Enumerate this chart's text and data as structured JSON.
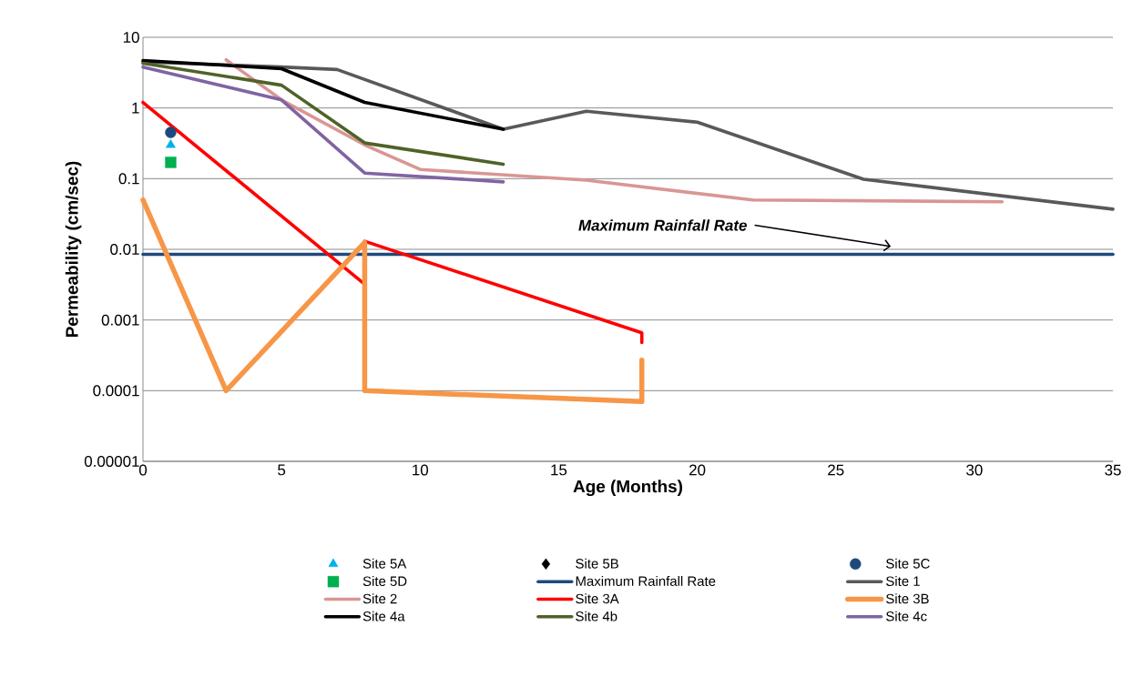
{
  "chart_data": {
    "type": "line",
    "xlabel": "Age (Months)",
    "ylabel": "Permeability (cm/sec)",
    "log": "y",
    "grid": "y",
    "legend": "bottom",
    "xlim": [
      0,
      35
    ],
    "xticks": [
      0,
      5,
      10,
      15,
      20,
      25,
      30,
      35
    ],
    "ylim": [
      1e-05,
      10
    ],
    "yticks": [
      {
        "value": 1e-05,
        "label": "0.00001"
      },
      {
        "value": 0.0001,
        "label": "0.0001"
      },
      {
        "value": 0.001,
        "label": "0.001"
      },
      {
        "value": 0.01,
        "label": "0.01"
      },
      {
        "value": 0.1,
        "label": "0.1"
      },
      {
        "value": 1,
        "label": "1"
      },
      {
        "value": 10,
        "label": "10"
      }
    ],
    "annotations": [
      "Maximum Rainfall Rate"
    ],
    "series": [
      {
        "name": "Site 5A",
        "type": "scatter",
        "marker": "triangle",
        "color": "#00b0f0",
        "x": [
          1
        ],
        "values": [
          0.3
        ]
      },
      {
        "name": "Site 5B",
        "type": "scatter",
        "marker": "diamond",
        "color": "#000000"
      },
      {
        "name": "Site 5C",
        "type": "scatter",
        "marker": "circle",
        "color": "#1f497d",
        "x": [
          1
        ],
        "values": [
          0.45
        ]
      },
      {
        "name": "Site 5D",
        "type": "scatter",
        "marker": "square",
        "color": "#00b050",
        "x": [
          1
        ],
        "values": [
          0.17
        ]
      },
      {
        "name": "Maximum Rainfall Rate",
        "color": "#1f497d",
        "x": [
          0,
          35
        ],
        "values": [
          0.0085,
          0.0085
        ]
      },
      {
        "name": "Site 1",
        "color": "#595959",
        "x": [
          0,
          5,
          7,
          13,
          16,
          20,
          26,
          35
        ],
        "values": [
          4.5,
          3.8,
          3.5,
          0.5,
          0.9,
          0.63,
          0.098,
          0.037
        ]
      },
      {
        "name": "Site 2",
        "color": "#d99694",
        "x": [
          3,
          5,
          8,
          10,
          16,
          22,
          31
        ],
        "values": [
          4.8,
          1.3,
          0.3,
          0.135,
          0.095,
          0.05,
          0.047
        ]
      },
      {
        "name": "Site 3A",
        "color": "#ff0000",
        "x": [
          0,
          8,
          8,
          18,
          18
        ],
        "values": [
          1.2,
          0.0032,
          0.013,
          0.00066,
          0.00048
        ]
      },
      {
        "name": "Site 3B",
        "color": "#f79646",
        "x": [
          0,
          3,
          8,
          8,
          18,
          18
        ],
        "values": [
          0.05,
          0.0001,
          0.0125,
          0.0001,
          7e-05,
          0.00027
        ]
      },
      {
        "name": "Site 4a",
        "color": "#000000",
        "x": [
          0,
          5,
          8,
          13
        ],
        "values": [
          4.7,
          3.6,
          1.2,
          0.5
        ]
      },
      {
        "name": "Site 4b",
        "color": "#4f6228",
        "x": [
          0,
          5,
          8,
          13
        ],
        "values": [
          4.3,
          2.1,
          0.32,
          0.16
        ]
      },
      {
        "name": "Site 4c",
        "color": "#8064a2",
        "x": [
          0,
          5,
          8,
          13
        ],
        "values": [
          3.8,
          1.3,
          0.12,
          0.09
        ]
      }
    ]
  }
}
